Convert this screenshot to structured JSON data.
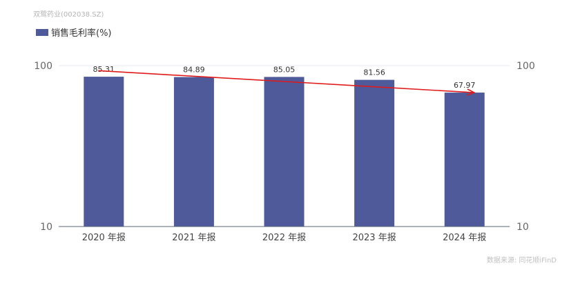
{
  "header": {
    "company": "双鹭药业(002038.SZ)"
  },
  "legend": {
    "label": "销售毛利率(%)"
  },
  "footer": {
    "source": "数据来源: 同花顺iFinD"
  },
  "colors": {
    "bar": "#4e5a9a",
    "trend": "#e11a1a",
    "axis": "#5a6478",
    "grid": "#e6e9f2"
  },
  "chart_data": {
    "type": "bar",
    "scale": "log",
    "ylim": [
      10,
      100
    ],
    "yticks_left": [
      "100",
      "10"
    ],
    "yticks_right": [
      "100",
      "10"
    ],
    "categories": [
      "2020 年报",
      "2021 年报",
      "2022 年报",
      "2023 年报",
      "2024 年报"
    ],
    "series": [
      {
        "name": "销售毛利率(%)",
        "values": [
          85.31,
          84.89,
          85.05,
          81.56,
          67.97
        ],
        "labels": [
          "85.31",
          "84.89",
          "85.05",
          "81.56",
          "67.97"
        ]
      }
    ],
    "trend_arrow": {
      "from_value": 93,
      "to_value": 67.97
    },
    "grid": true,
    "legend_position": "top-left"
  }
}
